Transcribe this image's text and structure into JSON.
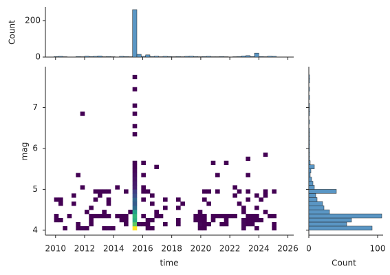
{
  "chart_data": [
    {
      "type": "histogram",
      "ylabel": "Count",
      "color": "#5a96c4",
      "bins": [
        2009.9,
        2010.2,
        2010.5,
        2010.8,
        2011.1,
        2011.4,
        2011.7,
        2012.0,
        2012.3,
        2012.6,
        2012.9,
        2013.2,
        2013.5,
        2013.8,
        2014.1,
        2014.4,
        2014.7,
        2015.0,
        2015.3,
        2015.6,
        2015.9,
        2016.2,
        2016.5,
        2016.8,
        2017.1,
        2017.4,
        2017.7,
        2018.0,
        2018.3,
        2018.6,
        2018.9,
        2019.2,
        2019.5,
        2019.8,
        2020.1,
        2020.4,
        2020.7,
        2021.0,
        2021.3,
        2021.6,
        2021.9,
        2022.2,
        2022.5,
        2022.8,
        2023.1,
        2023.4,
        2023.7,
        2024.0,
        2024.3,
        2024.6,
        2024.9,
        2025.2
      ],
      "counts": [
        3,
        4,
        2,
        1,
        1,
        3,
        2,
        5,
        3,
        4,
        6,
        2,
        3,
        2,
        1,
        4,
        3,
        2,
        260,
        15,
        4,
        12,
        3,
        5,
        2,
        4,
        3,
        2,
        3,
        2,
        4,
        5,
        3,
        2,
        3,
        4,
        2,
        2,
        3,
        2,
        1,
        2,
        3,
        6,
        8,
        3,
        22,
        3,
        2,
        5,
        4
      ],
      "xlim": [
        2009.3,
        2026.4
      ],
      "ylim": [
        0,
        275
      ],
      "yticks": [
        0,
        200
      ]
    },
    {
      "type": "hist2d",
      "xlabel": "time",
      "ylabel": "mag",
      "cmap": "viridis",
      "xlim": [
        2009.3,
        2026.4
      ],
      "ylim": [
        3.88,
        8.0
      ],
      "xticks": [
        2010,
        2012,
        2014,
        2016,
        2018,
        2020,
        2022,
        2024,
        2026
      ],
      "yticks": [
        4,
        5,
        6,
        7
      ],
      "x_bin_width": 0.3,
      "y_bin_width": 0.1,
      "cells": [
        [
          2010.5,
          4.0,
          1
        ],
        [
          2011.4,
          4.0,
          1
        ],
        [
          2011.7,
          4.0,
          2
        ],
        [
          2012.0,
          4.0,
          1
        ],
        [
          2013.2,
          4.0,
          1
        ],
        [
          2013.5,
          4.0,
          2
        ],
        [
          2013.8,
          4.0,
          1
        ],
        [
          2015.3,
          4.0,
          60
        ],
        [
          2016.2,
          4.0,
          1
        ],
        [
          2016.5,
          4.0,
          1
        ],
        [
          2019.8,
          4.0,
          1
        ],
        [
          2020.1,
          4.0,
          1
        ],
        [
          2022.8,
          4.0,
          2
        ],
        [
          2023.7,
          4.0,
          1
        ],
        [
          2024.9,
          4.0,
          1
        ],
        [
          2011.4,
          4.1,
          1
        ],
        [
          2012.3,
          4.1,
          1
        ],
        [
          2014.7,
          4.1,
          1
        ],
        [
          2015.3,
          4.1,
          45
        ],
        [
          2015.6,
          4.1,
          2
        ],
        [
          2015.9,
          4.1,
          1
        ],
        [
          2016.2,
          4.1,
          1
        ],
        [
          2017.4,
          4.1,
          1
        ],
        [
          2018.3,
          4.1,
          1
        ],
        [
          2019.8,
          4.1,
          2
        ],
        [
          2020.1,
          4.1,
          1
        ],
        [
          2020.4,
          4.1,
          1
        ],
        [
          2021.3,
          4.1,
          1
        ],
        [
          2021.6,
          4.1,
          1
        ],
        [
          2022.8,
          4.1,
          2
        ],
        [
          2023.1,
          4.1,
          1
        ],
        [
          2023.4,
          4.1,
          1
        ],
        [
          2024.9,
          4.1,
          1
        ],
        [
          2009.9,
          4.2,
          1
        ],
        [
          2010.2,
          4.2,
          1
        ],
        [
          2012.3,
          4.2,
          1
        ],
        [
          2014.4,
          4.2,
          1
        ],
        [
          2014.7,
          4.2,
          1
        ],
        [
          2015.3,
          4.2,
          38
        ],
        [
          2016.2,
          4.2,
          1
        ],
        [
          2016.5,
          4.2,
          1
        ],
        [
          2018.3,
          4.2,
          1
        ],
        [
          2019.5,
          4.2,
          1
        ],
        [
          2019.8,
          4.2,
          1
        ],
        [
          2020.1,
          4.2,
          1
        ],
        [
          2020.7,
          4.2,
          1
        ],
        [
          2021.6,
          4.2,
          1
        ],
        [
          2022.8,
          4.2,
          2
        ],
        [
          2023.1,
          4.2,
          1
        ],
        [
          2023.4,
          4.2,
          1
        ],
        [
          2023.7,
          4.2,
          1
        ],
        [
          2024.0,
          4.2,
          1
        ],
        [
          2009.9,
          4.3,
          1
        ],
        [
          2010.8,
          4.3,
          1
        ],
        [
          2012.3,
          4.3,
          1
        ],
        [
          2012.6,
          4.3,
          1
        ],
        [
          2012.9,
          4.3,
          1
        ],
        [
          2013.2,
          4.3,
          1
        ],
        [
          2013.5,
          4.3,
          1
        ],
        [
          2014.1,
          4.3,
          1
        ],
        [
          2014.4,
          4.3,
          1
        ],
        [
          2014.7,
          4.3,
          1
        ],
        [
          2015.3,
          4.3,
          40
        ],
        [
          2015.9,
          4.3,
          1
        ],
        [
          2016.8,
          4.3,
          1
        ],
        [
          2017.1,
          4.3,
          1
        ],
        [
          2019.5,
          4.3,
          1
        ],
        [
          2019.8,
          4.3,
          1
        ],
        [
          2020.1,
          4.3,
          1
        ],
        [
          2020.7,
          4.3,
          1
        ],
        [
          2021.0,
          4.3,
          1
        ],
        [
          2021.3,
          4.3,
          1
        ],
        [
          2021.6,
          4.3,
          1
        ],
        [
          2021.9,
          4.3,
          1
        ],
        [
          2022.2,
          4.3,
          1
        ],
        [
          2023.1,
          4.3,
          1
        ],
        [
          2023.4,
          4.3,
          1
        ],
        [
          2023.7,
          4.3,
          1
        ],
        [
          2024.6,
          4.3,
          1
        ],
        [
          2024.9,
          4.3,
          1
        ],
        [
          2012.0,
          4.4,
          1
        ],
        [
          2013.2,
          4.4,
          1
        ],
        [
          2015.0,
          4.4,
          1
        ],
        [
          2015.3,
          4.4,
          35
        ],
        [
          2016.8,
          4.4,
          1
        ],
        [
          2019.8,
          4.4,
          1
        ],
        [
          2022.8,
          4.4,
          1
        ],
        [
          2024.3,
          4.4,
          1
        ],
        [
          2012.3,
          4.5,
          1
        ],
        [
          2015.3,
          4.5,
          22
        ],
        [
          2017.4,
          4.5,
          1
        ],
        [
          2018.3,
          4.5,
          1
        ],
        [
          2022.8,
          4.5,
          1
        ],
        [
          2023.7,
          4.5,
          1
        ],
        [
          2010.2,
          4.6,
          1
        ],
        [
          2011.1,
          4.6,
          1
        ],
        [
          2013.5,
          4.6,
          1
        ],
        [
          2015.3,
          4.6,
          18
        ],
        [
          2016.5,
          4.6,
          1
        ],
        [
          2018.6,
          4.6,
          1
        ],
        [
          2020.4,
          4.6,
          1
        ],
        [
          2022.5,
          4.6,
          1
        ],
        [
          2009.9,
          4.7,
          1
        ],
        [
          2010.2,
          4.7,
          1
        ],
        [
          2012.6,
          4.7,
          1
        ],
        [
          2013.5,
          4.7,
          1
        ],
        [
          2015.3,
          4.7,
          20
        ],
        [
          2015.9,
          4.7,
          1
        ],
        [
          2017.4,
          4.7,
          1
        ],
        [
          2018.3,
          4.7,
          1
        ],
        [
          2020.1,
          4.7,
          1
        ],
        [
          2023.1,
          4.7,
          1
        ],
        [
          2024.0,
          4.7,
          1
        ],
        [
          2011.1,
          4.8,
          1
        ],
        [
          2012.9,
          4.8,
          1
        ],
        [
          2015.3,
          4.8,
          15
        ],
        [
          2016.5,
          4.8,
          1
        ],
        [
          2022.2,
          4.8,
          1
        ],
        [
          2023.7,
          4.8,
          1
        ],
        [
          2024.3,
          4.8,
          1
        ],
        [
          2012.6,
          4.9,
          1
        ],
        [
          2012.9,
          4.9,
          1
        ],
        [
          2013.2,
          4.9,
          1
        ],
        [
          2013.5,
          4.9,
          1
        ],
        [
          2014.7,
          4.9,
          1
        ],
        [
          2015.3,
          4.9,
          12
        ],
        [
          2015.9,
          4.9,
          1
        ],
        [
          2016.2,
          4.9,
          1
        ],
        [
          2020.1,
          4.9,
          1
        ],
        [
          2020.4,
          4.9,
          1
        ],
        [
          2021.0,
          4.9,
          1
        ],
        [
          2022.5,
          4.9,
          1
        ],
        [
          2023.1,
          4.9,
          1
        ],
        [
          2024.3,
          4.9,
          1
        ],
        [
          2024.9,
          4.9,
          1
        ],
        [
          2011.7,
          5.0,
          1
        ],
        [
          2014.1,
          5.0,
          1
        ],
        [
          2015.3,
          5.0,
          6
        ],
        [
          2015.9,
          5.0,
          1
        ],
        [
          2022.2,
          5.0,
          1
        ],
        [
          2015.3,
          5.1,
          5
        ],
        [
          2015.3,
          5.2,
          4
        ],
        [
          2011.4,
          5.3,
          1
        ],
        [
          2015.3,
          5.3,
          3
        ],
        [
          2015.9,
          5.3,
          1
        ],
        [
          2021.0,
          5.3,
          1
        ],
        [
          2023.1,
          5.3,
          1
        ],
        [
          2015.3,
          5.4,
          2
        ],
        [
          2015.3,
          5.5,
          1
        ],
        [
          2016.8,
          5.5,
          1
        ],
        [
          2015.3,
          5.6,
          1
        ],
        [
          2015.9,
          5.6,
          1
        ],
        [
          2020.7,
          5.6,
          1
        ],
        [
          2021.6,
          5.6,
          1
        ],
        [
          2023.1,
          5.7,
          1
        ],
        [
          2024.3,
          5.8,
          1
        ],
        [
          2015.3,
          6.3,
          1
        ],
        [
          2015.3,
          6.5,
          1
        ],
        [
          2015.3,
          6.8,
          1
        ],
        [
          2011.7,
          6.8,
          1
        ],
        [
          2015.3,
          7.0,
          1
        ],
        [
          2015.3,
          7.4,
          1
        ],
        [
          2015.3,
          7.7,
          1
        ]
      ]
    },
    {
      "type": "histogram",
      "orientation": "horizontal",
      "xlabel": "Count",
      "color": "#5a96c4",
      "bins": [
        4.0,
        4.1,
        4.2,
        4.3,
        4.4,
        4.5,
        4.6,
        4.7,
        4.8,
        4.9,
        5.0,
        5.1,
        5.2,
        5.3,
        5.4,
        5.5,
        5.6,
        5.7,
        5.8,
        5.9,
        6.0,
        6.1,
        6.2,
        6.3,
        6.4,
        6.5,
        6.6,
        6.7,
        6.8,
        6.9,
        7.0,
        7.1,
        7.2,
        7.3,
        7.4,
        7.5,
        7.6,
        7.7,
        7.8
      ],
      "counts": [
        92,
        55,
        62,
        106,
        30,
        22,
        20,
        12,
        10,
        40,
        8,
        6,
        4,
        2,
        3,
        8,
        2,
        1,
        1,
        1,
        1,
        1,
        1,
        1,
        1,
        0,
        1,
        0,
        1,
        1,
        1,
        0,
        1,
        0,
        1,
        0,
        1,
        1
      ],
      "xlim": [
        0,
        108
      ],
      "xticks": [
        0,
        100
      ]
    }
  ]
}
